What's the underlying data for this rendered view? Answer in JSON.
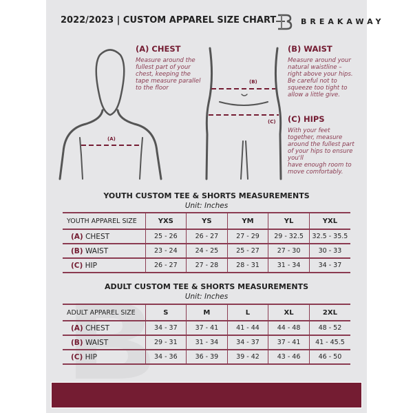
{
  "header": {
    "title": "2022/2023  |  CUSTOM APPAREL SIZE CHART",
    "brand": "BREAKAWAY",
    "watermark": "B"
  },
  "colors": {
    "accent": "#741c32",
    "background": "#e6e6e8"
  },
  "measures": {
    "chest": {
      "title": "(A) CHEST",
      "marker": "(A)",
      "desc": [
        "Measure around the",
        "fullest part of your",
        "chest, keeping the",
        "tape measure parallel",
        "to the floor"
      ]
    },
    "waist": {
      "title": "(B) WAIST",
      "marker": "(B)",
      "desc": [
        "Measure around your",
        "natural waistline –",
        "right above your hips.",
        "Be careful not to",
        "squeeze too tight to",
        "allow a little give."
      ]
    },
    "hips": {
      "title": "(C) HIPS",
      "marker": "(C)",
      "desc": [
        "With your feet",
        "together, measure",
        "around the fullest part",
        "of your hips to ensure",
        "you'll",
        "have enough room to",
        "move comfortably."
      ]
    }
  },
  "youth": {
    "title": "YOUTH CUSTOM TEE & SHORTS MEASUREMENTS",
    "unit": "Unit: Inches",
    "header": [
      "YOUTH APPAREL SIZE",
      "YXS",
      "YS",
      "YM",
      "YL",
      "YXL"
    ],
    "rows": [
      {
        "code": "(A)",
        "name": "CHEST",
        "values": [
          "25 - 26",
          "26 - 27",
          "27 - 29",
          "29 - 32.5",
          "32.5 - 35.5"
        ]
      },
      {
        "code": "(B)",
        "name": "WAIST",
        "values": [
          "23 - 24",
          "24 - 25",
          "25 - 27",
          "27 - 30",
          "30 - 33"
        ]
      },
      {
        "code": "(C)",
        "name": "HIP",
        "values": [
          "26 - 27",
          "27 - 28",
          "28 - 31",
          "31 - 34",
          "34 - 37"
        ]
      }
    ]
  },
  "adult": {
    "title": "ADULT CUSTOM TEE & SHORTS MEASUREMENTS",
    "unit": "Unit: Inches",
    "header": [
      "ADULT APPAREL SIZE",
      "S",
      "M",
      "L",
      "XL",
      "2XL"
    ],
    "rows": [
      {
        "code": "(A)",
        "name": "CHEST",
        "values": [
          "34 - 37",
          "37 - 41",
          "41 - 44",
          "44 - 48",
          "48 - 52"
        ]
      },
      {
        "code": "(B)",
        "name": "WAIST",
        "values": [
          "29 - 31",
          "31 - 34",
          "34 - 37",
          "37 - 41",
          "41 - 45.5"
        ]
      },
      {
        "code": "(C)",
        "name": "HIP",
        "values": [
          "34 - 36",
          "36 - 39",
          "39 - 42",
          "43 - 46",
          "46 - 50"
        ]
      }
    ]
  }
}
